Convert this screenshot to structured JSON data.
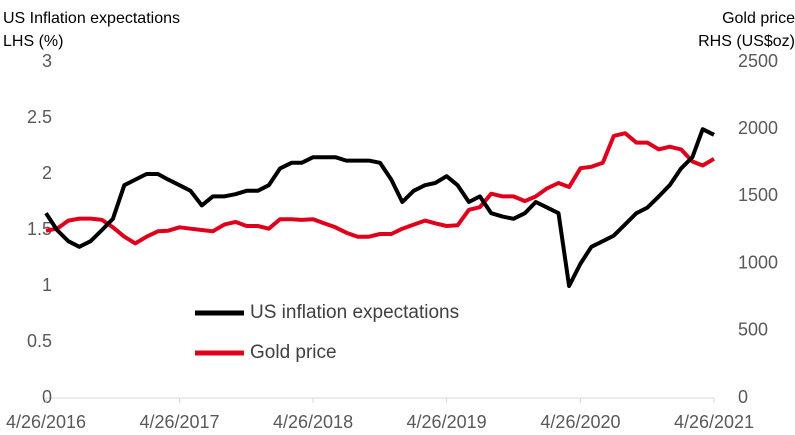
{
  "chart_data": {
    "type": "line",
    "ylabel": [
      "US Inflation expectations",
      "LHS (%)"
    ],
    "y2label": [
      "Gold price",
      "RHS (US$oz)"
    ],
    "x": [
      "4/26/2016",
      "5/26/2016",
      "6/26/2016",
      "7/26/2016",
      "8/26/2016",
      "9/26/2016",
      "10/26/2016",
      "11/26/2016",
      "12/26/2016",
      "1/26/2017",
      "2/26/2017",
      "3/26/2017",
      "4/26/2017",
      "5/26/2017",
      "6/26/2017",
      "7/26/2017",
      "8/26/2017",
      "9/26/2017",
      "10/26/2017",
      "11/26/2017",
      "12/26/2017",
      "1/26/2018",
      "2/26/2018",
      "3/26/2018",
      "4/26/2018",
      "5/26/2018",
      "6/26/2018",
      "7/26/2018",
      "8/26/2018",
      "9/26/2018",
      "10/26/2018",
      "11/26/2018",
      "12/26/2018",
      "1/26/2019",
      "2/26/2019",
      "3/26/2019",
      "4/26/2019",
      "5/26/2019",
      "6/26/2019",
      "7/26/2019",
      "8/26/2019",
      "9/26/2019",
      "10/26/2019",
      "11/26/2019",
      "12/26/2019",
      "1/26/2020",
      "2/26/2020",
      "3/26/2020",
      "4/26/2020",
      "5/26/2020",
      "6/26/2020",
      "7/26/2020",
      "8/26/2020",
      "9/26/2020",
      "10/26/2020",
      "11/26/2020",
      "12/26/2020",
      "1/26/2021",
      "2/26/2021",
      "3/26/2021",
      "4/26/2021"
    ],
    "series": [
      {
        "name": "US inflation expectations",
        "color": "#000000",
        "axis": "y",
        "values": [
          1.65,
          1.5,
          1.4,
          1.35,
          1.4,
          1.5,
          1.6,
          1.9,
          1.95,
          2.0,
          2.0,
          1.95,
          1.9,
          1.85,
          1.72,
          1.8,
          1.8,
          1.82,
          1.85,
          1.85,
          1.9,
          2.05,
          2.1,
          2.1,
          2.15,
          2.15,
          2.15,
          2.12,
          2.12,
          2.12,
          2.1,
          1.95,
          1.75,
          1.85,
          1.9,
          1.92,
          1.98,
          1.9,
          1.75,
          1.8,
          1.65,
          1.62,
          1.6,
          1.65,
          1.75,
          1.7,
          1.65,
          1.0,
          1.2,
          1.35,
          1.4,
          1.45,
          1.55,
          1.65,
          1.7,
          1.8,
          1.9,
          2.05,
          2.15,
          2.4,
          2.35
        ]
      },
      {
        "name": "Gold price",
        "color": "#e0001b",
        "axis": "y2",
        "values": [
          1245,
          1260,
          1320,
          1335,
          1335,
          1325,
          1270,
          1200,
          1150,
          1200,
          1240,
          1245,
          1270,
          1260,
          1250,
          1240,
          1290,
          1310,
          1280,
          1280,
          1260,
          1330,
          1330,
          1325,
          1330,
          1300,
          1270,
          1230,
          1200,
          1200,
          1220,
          1220,
          1260,
          1290,
          1320,
          1300,
          1280,
          1285,
          1400,
          1420,
          1520,
          1500,
          1500,
          1465,
          1500,
          1560,
          1600,
          1570,
          1710,
          1720,
          1750,
          1950,
          1970,
          1900,
          1900,
          1850,
          1870,
          1850,
          1760,
          1730,
          1780
        ]
      }
    ],
    "xlim": [
      "4/26/2016",
      "4/26/2021"
    ],
    "xticks": [
      "4/26/2016",
      "4/26/2017",
      "4/26/2018",
      "4/26/2019",
      "4/26/2020",
      "4/26/2021"
    ],
    "ylim": [
      0,
      3
    ],
    "yticks": [
      0,
      0.5,
      1,
      1.5,
      2,
      2.5,
      3
    ],
    "y2lim": [
      0,
      2500
    ],
    "y2ticks": [
      0,
      500,
      1000,
      1500,
      2000,
      2500
    ],
    "grid": false,
    "legend": "lower left"
  }
}
